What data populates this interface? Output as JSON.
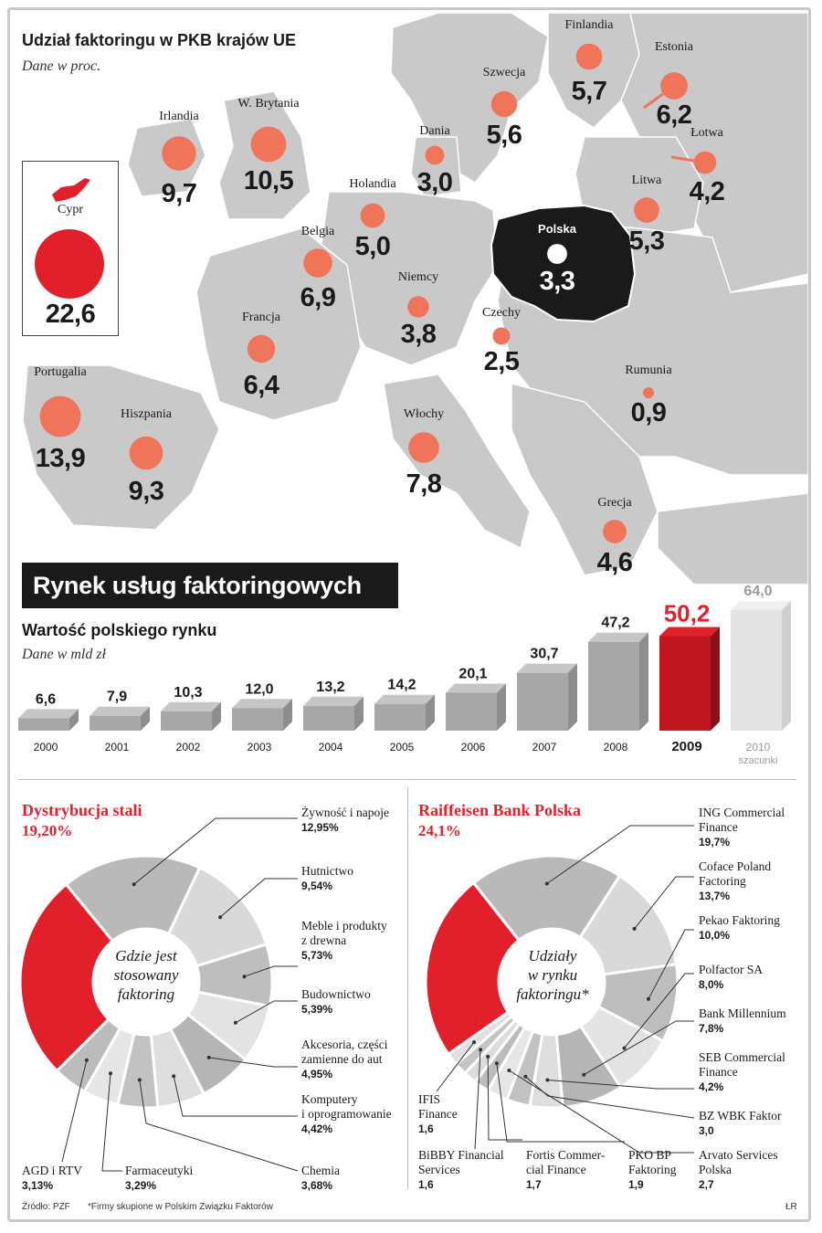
{
  "map": {
    "title": "Udział faktoringu w PKB krajów UE",
    "subtitle": "Dane w proc.",
    "colors": {
      "land": "#c9c9c9",
      "circle": "#f0745a",
      "poland": "#1a1a1a",
      "accent": "#e2202c"
    }
  },
  "chart_data": [
    {
      "type": "bubble-map",
      "title": "Udział faktoringu w PKB krajów UE",
      "subtitle": "Dane w proc.",
      "countries": [
        {
          "name": "Finlandia",
          "value": "5,7"
        },
        {
          "name": "Estonia",
          "value": "6,2"
        },
        {
          "name": "Szwecja",
          "value": "5,6"
        },
        {
          "name": "Łotwa",
          "value": "4,2"
        },
        {
          "name": "Irlandia",
          "value": "9,7"
        },
        {
          "name": "W. Brytania",
          "value": "10,5"
        },
        {
          "name": "Dania",
          "value": "3,0"
        },
        {
          "name": "Holandia",
          "value": "5,0"
        },
        {
          "name": "Litwa",
          "value": "5,3"
        },
        {
          "name": "Belgia",
          "value": "6,9"
        },
        {
          "name": "Polska",
          "value": "3,3"
        },
        {
          "name": "Niemcy",
          "value": "3,8"
        },
        {
          "name": "Francja",
          "value": "6,4"
        },
        {
          "name": "Czechy",
          "value": "2,5"
        },
        {
          "name": "Portugalia",
          "value": "13,9"
        },
        {
          "name": "Rumunia",
          "value": "0,9"
        },
        {
          "name": "Hiszpania",
          "value": "9,3"
        },
        {
          "name": "Włochy",
          "value": "7,8"
        },
        {
          "name": "Grecja",
          "value": "4,6"
        },
        {
          "name": "Cypr",
          "value": "22,6"
        }
      ]
    },
    {
      "type": "bar",
      "title": "Wartość polskiego rynku",
      "subtitle": "Dane w mld zł",
      "categories": [
        "2000",
        "2001",
        "2002",
        "2003",
        "2004",
        "2005",
        "2006",
        "2007",
        "2008",
        "2009",
        "2010"
      ],
      "values": [
        6.6,
        7.9,
        10.3,
        12.0,
        13.2,
        14.2,
        20.1,
        30.7,
        47.2,
        50.2,
        64.0
      ],
      "value_labels": [
        "6,6",
        "7,9",
        "10,3",
        "12,0",
        "13,2",
        "14,2",
        "20,1",
        "30,7",
        "47,2",
        "50,2",
        "64,0"
      ],
      "highlight": "2009",
      "estimate_label": "szacunki"
    },
    {
      "type": "pie",
      "center_text": "Gdzie jest\nstosowany\nfaktoring",
      "highlight": {
        "name": "Dystrybucja stali",
        "value": "19,20%"
      },
      "slices": [
        {
          "name": "Dystrybucja stali",
          "value": 19.2
        },
        {
          "name": "Żywność i napoje",
          "value": 12.95
        },
        {
          "name": "Hutnictwo",
          "value": 9.54
        },
        {
          "name": "Meble i produkty z drewna",
          "value": 5.73
        },
        {
          "name": "Budownictwo",
          "value": 5.39
        },
        {
          "name": "Akcesoria, części zamienne do aut",
          "value": 4.95
        },
        {
          "name": "Komputery i oprogramowanie",
          "value": 4.42
        },
        {
          "name": "Chemia",
          "value": 3.68
        },
        {
          "name": "Farmaceutyki",
          "value": 3.29
        },
        {
          "name": "AGD i RTV",
          "value": 3.13
        }
      ]
    },
    {
      "type": "pie",
      "center_text": "Udziały\nw rynku\nfaktoringu*",
      "highlight": {
        "name": "Raiffeisen Bank Polska",
        "value": "24,1%"
      },
      "slices": [
        {
          "name": "Raiffeisen Bank Polska",
          "value": 24.1
        },
        {
          "name": "ING Commercial Finance",
          "value": 19.7
        },
        {
          "name": "Coface Poland Factoring",
          "value": 13.7
        },
        {
          "name": "Pekao Faktoring",
          "value": 10.0
        },
        {
          "name": "Polfactor SA",
          "value": 8.0
        },
        {
          "name": "Bank Millennium",
          "value": 7.8
        },
        {
          "name": "SEB Commercial Finance",
          "value": 4.2
        },
        {
          "name": "BZ WBK Faktor",
          "value": 3.0
        },
        {
          "name": "Arvato Services Polska",
          "value": 2.7
        },
        {
          "name": "PKO BP Faktoring",
          "value": 1.9
        },
        {
          "name": "Fortis Commercial Finance",
          "value": 1.7
        },
        {
          "name": "BiBBY Financial Services",
          "value": 1.6
        },
        {
          "name": "IFIS Finance",
          "value": 1.6
        }
      ]
    }
  ],
  "map_labels": {
    "finlandia": {
      "name": "Finlandia",
      "value": "5,7"
    },
    "estonia": {
      "name": "Estonia",
      "value": "6,2"
    },
    "szwecja": {
      "name": "Szwecja",
      "value": "5,6"
    },
    "lotwa": {
      "name": "Łotwa",
      "value": "4,2"
    },
    "irlandia": {
      "name": "Irlandia",
      "value": "9,7"
    },
    "wbrytania": {
      "name": "W. Brytania",
      "value": "10,5"
    },
    "dania": {
      "name": "Dania",
      "value": "3,0"
    },
    "holandia": {
      "name": "Holandia",
      "value": "5,0"
    },
    "litwa": {
      "name": "Litwa",
      "value": "5,3"
    },
    "belgia": {
      "name": "Belgia",
      "value": "6,9"
    },
    "polska": {
      "name": "Polska",
      "value": "3,3"
    },
    "niemcy": {
      "name": "Niemcy",
      "value": "3,8"
    },
    "francja": {
      "name": "Francja",
      "value": "6,4"
    },
    "czechy": {
      "name": "Czechy",
      "value": "2,5"
    },
    "portugalia": {
      "name": "Portugalia",
      "value": "13,9"
    },
    "rumunia": {
      "name": "Rumunia",
      "value": "0,9"
    },
    "hiszpania": {
      "name": "Hiszpania",
      "value": "9,3"
    },
    "wlochy": {
      "name": "Włochy",
      "value": "7,8"
    },
    "grecja": {
      "name": "Grecja",
      "value": "4,6"
    },
    "cypr": {
      "name": "Cypr",
      "value": "22,6"
    }
  },
  "market": {
    "banner": "Rynek usług faktoringowych",
    "title": "Wartość polskiego rynku",
    "subtitle": "Dane w mld zł"
  },
  "pie1": {
    "title": "Dystrybucja stali",
    "pct": "19,20%",
    "center": "Gdzie jest\nstosowany\nfaktoring",
    "labels": [
      {
        "name": "Żywność i napoje",
        "value": "12,95%"
      },
      {
        "name": "Hutnictwo",
        "value": "9,54%"
      },
      {
        "name": "Meble i produkty\nz drewna",
        "value": "5,73%"
      },
      {
        "name": "Budownictwo",
        "value": "5,39%"
      },
      {
        "name": "Akcesoria, części\nzamienne do aut",
        "value": "4,95%"
      },
      {
        "name": "Komputery\ni oprogramowanie",
        "value": "4,42%"
      },
      {
        "name": "Chemia",
        "value": "3,68%"
      },
      {
        "name": "Farmaceutyki",
        "value": "3,29%"
      },
      {
        "name": "AGD i RTV",
        "value": "3,13%"
      }
    ]
  },
  "pie2": {
    "title": "Raiffeisen Bank Polska",
    "pct": "24,1%",
    "center": "Udziały\nw rynku\nfaktoringu*",
    "labels": [
      {
        "name": "ING Commercial\nFinance",
        "value": "19,7%"
      },
      {
        "name": "Coface Poland\nFactoring",
        "value": "13,7%"
      },
      {
        "name": "Pekao Faktoring",
        "value": "10,0%"
      },
      {
        "name": "Polfactor SA",
        "value": "8,0%"
      },
      {
        "name": "Bank Millennium",
        "value": "7,8%"
      },
      {
        "name": "SEB Commercial\nFinance",
        "value": "4,2%"
      },
      {
        "name": "BZ WBK Faktor",
        "value": "3,0"
      },
      {
        "name": "Arvato Services\nPolska",
        "value": "2,7"
      },
      {
        "name": "PKO BP\nFaktoring",
        "value": "1,9"
      },
      {
        "name": "Fortis Commer-\ncial Finance",
        "value": "1,7"
      },
      {
        "name": "BiBBY Financial\nServices",
        "value": "1,6"
      },
      {
        "name": "IFIS\nFinance",
        "value": "1,6"
      }
    ]
  },
  "footer": {
    "source": "Źródło: PZF",
    "note": "*Firmy skupione w Polskim Związku Faktorów",
    "author": "ŁR"
  }
}
